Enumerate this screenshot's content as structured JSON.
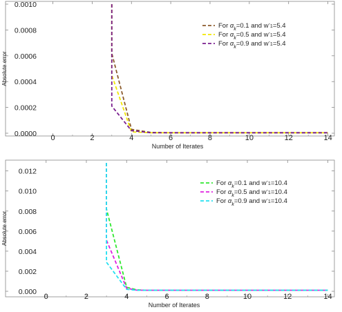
{
  "chart_data": [
    {
      "type": "line",
      "xlabel": "Number of Iterates",
      "ylabel": "Absolute error",
      "xlim": [
        -0.3,
        14.05
      ],
      "ylim": [
        0,
        0.001
      ],
      "xticks": [
        "0",
        "2",
        "4",
        "6",
        "8",
        "10",
        "12",
        "14"
      ],
      "yticks": [
        "0.0000",
        "0.0002",
        "0.0004",
        "0.0006",
        "0.0008",
        "0.0010"
      ],
      "legend_position": "top-right",
      "series": [
        {
          "legend": {
            "prefix": "For ",
            "alpha": "α",
            "sub": "k",
            "mid": "=0.1 and w",
            "sup": "-",
            "sub2": "1",
            "tail": "=5.4"
          },
          "color": "#8b5a2b",
          "x": [
            3,
            3,
            4,
            5,
            6,
            8,
            10,
            12,
            14
          ],
          "y": [
            0.001,
            0.00062,
            3e-05,
            6e-06,
            4e-06,
            4e-06,
            4e-06,
            4e-06,
            4e-06
          ]
        },
        {
          "legend": {
            "prefix": "For ",
            "alpha": "α",
            "sub": "k",
            "mid": "=0.5 and w",
            "sup": "-",
            "sub2": "1",
            "tail": "=5.4"
          },
          "color": "#f2e600",
          "x": [
            3,
            3,
            4,
            5,
            6,
            8,
            10,
            12,
            14
          ],
          "y": [
            0.001,
            0.00045,
            1e-05,
            4e-06,
            4e-06,
            4e-06,
            4e-06,
            4e-06,
            4e-06
          ]
        },
        {
          "legend": {
            "prefix": "For ",
            "alpha": "α",
            "sub": "k",
            "mid": "=0.9 and w",
            "sup": "-",
            "sub2": "1",
            "tail": "=5.4"
          },
          "color": "#7a1f8f",
          "x": [
            3,
            3,
            4,
            5,
            6,
            8,
            10,
            12,
            14
          ],
          "y": [
            0.001,
            0.00021,
            2e-05,
            4e-06,
            4e-06,
            4e-06,
            4e-06,
            4e-06,
            4e-06
          ]
        }
      ]
    },
    {
      "type": "line",
      "xlabel": "Number of Iterates",
      "ylabel": "Absolute error",
      "xlim": [
        -0.3,
        14.05
      ],
      "ylim": [
        0,
        0.0128
      ],
      "xticks": [
        "0",
        "2",
        "4",
        "6",
        "8",
        "10",
        "12",
        "14"
      ],
      "yticks": [
        "0.000",
        "0.002",
        "0.004",
        "0.006",
        "0.008",
        "0.010",
        "0.012"
      ],
      "legend_position": "top-right",
      "series": [
        {
          "legend": {
            "prefix": "For ",
            "alpha": "α",
            "sub": "k",
            "mid": "=0.1 and w",
            "sup": "-",
            "sub2": "1",
            "tail": "=10.4"
          },
          "color": "#2ee82e",
          "x": [
            3,
            3,
            4,
            4.5,
            5,
            6,
            8,
            10,
            12,
            14
          ],
          "y": [
            0.0128,
            0.0082,
            0.0004,
            0.00015,
            0.0001,
            0.0001,
            0.0001,
            0.0001,
            0.0001,
            0.0001
          ]
        },
        {
          "legend": {
            "prefix": "For ",
            "alpha": "α",
            "sub": "k",
            "mid": "=0.5 and w",
            "sup": "-",
            "sub2": "1",
            "tail": "=10.4"
          },
          "color": "#e020e0",
          "x": [
            3,
            3,
            4,
            4.5,
            5,
            6,
            8,
            10,
            12,
            14
          ],
          "y": [
            0.0128,
            0.0051,
            0.0003,
            0.00012,
            0.0001,
            0.0001,
            0.0001,
            0.0001,
            0.0001,
            0.0001
          ]
        },
        {
          "legend": {
            "prefix": "For ",
            "alpha": "α",
            "sub": "k",
            "mid": "=0.9 and w",
            "sup": "-",
            "sub2": "1",
            "tail": "=10.4"
          },
          "color": "#22e0f0",
          "x": [
            3,
            3,
            4,
            4.5,
            5,
            6,
            8,
            10,
            12,
            14
          ],
          "y": [
            0.0128,
            0.0029,
            0.0002,
            0.0001,
            0.0001,
            0.0001,
            0.0001,
            0.0001,
            0.0001,
            0.0001
          ]
        }
      ]
    }
  ]
}
